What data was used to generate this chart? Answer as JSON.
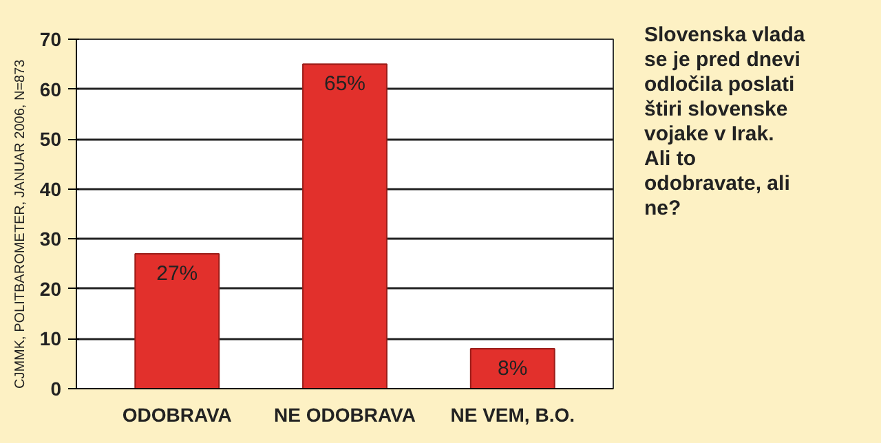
{
  "chart_data": {
    "type": "bar",
    "title": "Slovenska vlada se je pred dnevi odločila poslati štiri slovenske vojake v Irak. Ali to odobravate, ali ne?",
    "annotations": [
      "CJMMK, POLITBAROMETER, JANUAR 2006, N=873"
    ],
    "categories": [
      "ODOBRAVA",
      "NE ODOBRAVA",
      "NE VEM, B.O."
    ],
    "values": [
      27,
      65,
      8
    ],
    "value_labels": [
      "27%",
      "65%",
      "8%"
    ],
    "color": "#e2302c",
    "ylim": [
      0,
      70
    ],
    "yticks": [
      0,
      10,
      20,
      30,
      40,
      50,
      60,
      70
    ],
    "grid": "y"
  }
}
